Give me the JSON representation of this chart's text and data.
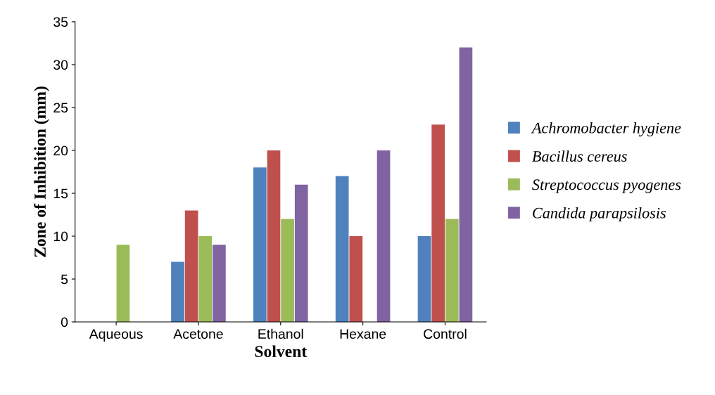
{
  "chart_data": {
    "type": "bar",
    "xlabel": "Solvent",
    "ylabel": "Zone of Inhibition (mm)",
    "categories": [
      "Aqueous",
      "Acetone",
      "Ethanol",
      "Hexane",
      "Control"
    ],
    "series": [
      {
        "name": "Achromobacter hygiene",
        "color": "#4f81bd",
        "values": [
          0,
          7,
          18,
          17,
          10
        ]
      },
      {
        "name": "Bacillus cereus",
        "color": "#c0504d",
        "values": [
          0,
          13,
          20,
          10,
          23
        ]
      },
      {
        "name": "Streptococcus pyogenes",
        "color": "#9bbb59",
        "values": [
          9,
          10,
          12,
          0,
          12
        ]
      },
      {
        "name": "Candida parapsilosis",
        "color": "#8064a2",
        "values": [
          0,
          9,
          16,
          20,
          32
        ]
      }
    ],
    "ylim": [
      0,
      35
    ],
    "yticks": [
      0,
      5,
      10,
      15,
      20,
      25,
      30,
      35
    ],
    "grid": false,
    "legend": "right"
  }
}
